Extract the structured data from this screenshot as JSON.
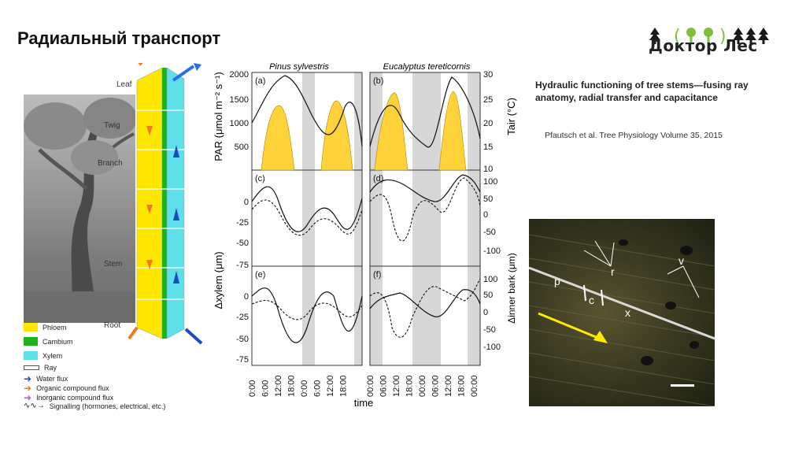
{
  "slide": {
    "title": "Радиальный транспорт",
    "logo_text": "Доктор Лес"
  },
  "reference": {
    "title": "Hydraulic functioning of tree stems—fusing ray anatomy, radial transfer and capacitance",
    "authors": "Pfautsch et al. Tree Physiology Volume 35, 2015"
  },
  "tree_figure": {
    "labels": {
      "leaf": "Leaf",
      "twig": "Twig",
      "branch": "Branch",
      "stem": "Stem",
      "root": "Root"
    },
    "legend": [
      {
        "label": "Phloem",
        "color": "#ffe600"
      },
      {
        "label": "Cambium",
        "color": "#1bb21b"
      },
      {
        "label": "Xylem",
        "color": "#5ee0ea"
      },
      {
        "label": "Ray",
        "color": "#ffffff"
      },
      {
        "label": "Water flux",
        "color": "#1f47c7"
      },
      {
        "label": "Organic compound flux",
        "color": "#f07a1f"
      },
      {
        "label": "Inorganic compound flux",
        "color": "#d14bd1"
      },
      {
        "label": "Signalling (hormones, electrical, etc.)",
        "color": "#333333"
      }
    ]
  },
  "micrograph": {
    "labels": {
      "v": "v",
      "r": "r",
      "p": "p",
      "c": "c",
      "x": "x"
    }
  },
  "chart_data": {
    "type": "line",
    "xlabel": "time",
    "species": [
      "Pinus sylvestris",
      "Eucalyptus tereticornis"
    ],
    "panel_labels": [
      "(a)",
      "(b)",
      "(c)",
      "(d)",
      "(e)",
      "(f)"
    ],
    "x_ticks": [
      "0:00",
      "6:00",
      "12:00",
      "18:00",
      "0:00",
      "6:00",
      "12:00",
      "18:00",
      "00:00",
      "06:00",
      "12:00",
      "18:00",
      "00:00",
      "06:00",
      "12:00",
      "18:00",
      "00:00"
    ],
    "left_axis": {
      "top": {
        "label": "PAR (μmol m⁻² s⁻¹)",
        "ticks": [
          2000,
          1500,
          1000,
          500
        ]
      },
      "mid": {
        "ticks": [
          0,
          -25,
          -50,
          -75
        ]
      },
      "bottom": {
        "ticks": [
          0,
          -25,
          -50,
          -75
        ]
      },
      "shared_label": "Δxylem (μm)"
    },
    "right_axis": {
      "top": {
        "label": "Tair (°C)",
        "ticks": [
          30,
          25,
          20,
          15,
          10
        ]
      },
      "mid": {
        "ticks": [
          100,
          50,
          0,
          -50,
          -100
        ]
      },
      "bottom": {
        "ticks": [
          100,
          50,
          0,
          -50,
          -100
        ]
      },
      "shared_label": "Δinner bark (μm)"
    },
    "series_note": "solid = xylem/temperature, dashed = inner bark, filled = PAR"
  }
}
